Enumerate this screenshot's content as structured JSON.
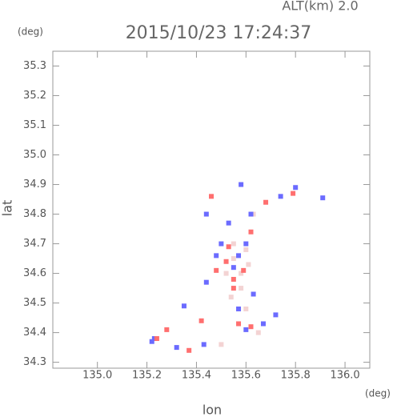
{
  "chart_data": {
    "type": "scatter",
    "title": "2015/10/23 17:24:37",
    "subtitle": "ALT(km)  2.0",
    "y_unit": "(deg)",
    "x_unit": "(deg)",
    "x_label": "lon",
    "y_label": "lat",
    "xlim": [
      134.82,
      136.1
    ],
    "ylim": [
      34.28,
      35.35
    ],
    "xticks": [
      {
        "value": 135.0,
        "label": "135.0"
      },
      135.2,
      135.4,
      135.6,
      135.8,
      {
        "value": 136.0,
        "label": "136.0"
      }
    ],
    "yticks": [
      34.3,
      34.4,
      34.5,
      34.6,
      34.7,
      34.8,
      34.9,
      {
        "value": 35.0,
        "label": "35.0"
      },
      35.1,
      35.2,
      35.3
    ],
    "series": [
      {
        "color": "#f3d3d3",
        "x": [
          135.55,
          135.58,
          135.52,
          135.58,
          135.6,
          135.55,
          135.6,
          135.65,
          135.5,
          135.63,
          135.54,
          135.61
        ],
        "values": [
          34.65,
          34.6,
          34.6,
          34.55,
          34.48,
          34.7,
          34.68,
          34.4,
          34.36,
          34.8,
          34.52,
          34.63
        ]
      },
      {
        "color": "#6b6bff",
        "x": [
          135.91,
          135.74,
          135.8,
          135.57,
          135.48,
          135.63,
          135.72,
          135.35,
          135.67,
          135.23,
          135.22,
          135.43,
          135.32,
          135.55,
          135.6,
          135.6,
          135.57,
          135.44,
          135.5,
          135.62,
          135.44,
          135.53,
          135.58
        ],
        "values": [
          34.855,
          34.86,
          34.89,
          34.66,
          34.66,
          34.53,
          34.46,
          34.49,
          34.43,
          34.38,
          34.37,
          34.36,
          34.35,
          34.62,
          34.7,
          34.41,
          34.48,
          34.57,
          34.7,
          34.8,
          34.8,
          34.77,
          34.9
        ]
      },
      {
        "color": "#ff6f6f",
        "x": [
          135.52,
          135.59,
          135.55,
          135.48,
          135.57,
          135.62,
          135.24,
          135.37,
          135.46,
          135.68,
          135.62,
          135.53,
          135.55,
          135.28,
          135.42,
          135.79
        ],
        "values": [
          34.64,
          34.61,
          34.58,
          34.61,
          34.43,
          34.42,
          34.38,
          34.34,
          34.86,
          34.84,
          34.74,
          34.69,
          34.55,
          34.41,
          34.44,
          34.87
        ]
      }
    ]
  }
}
